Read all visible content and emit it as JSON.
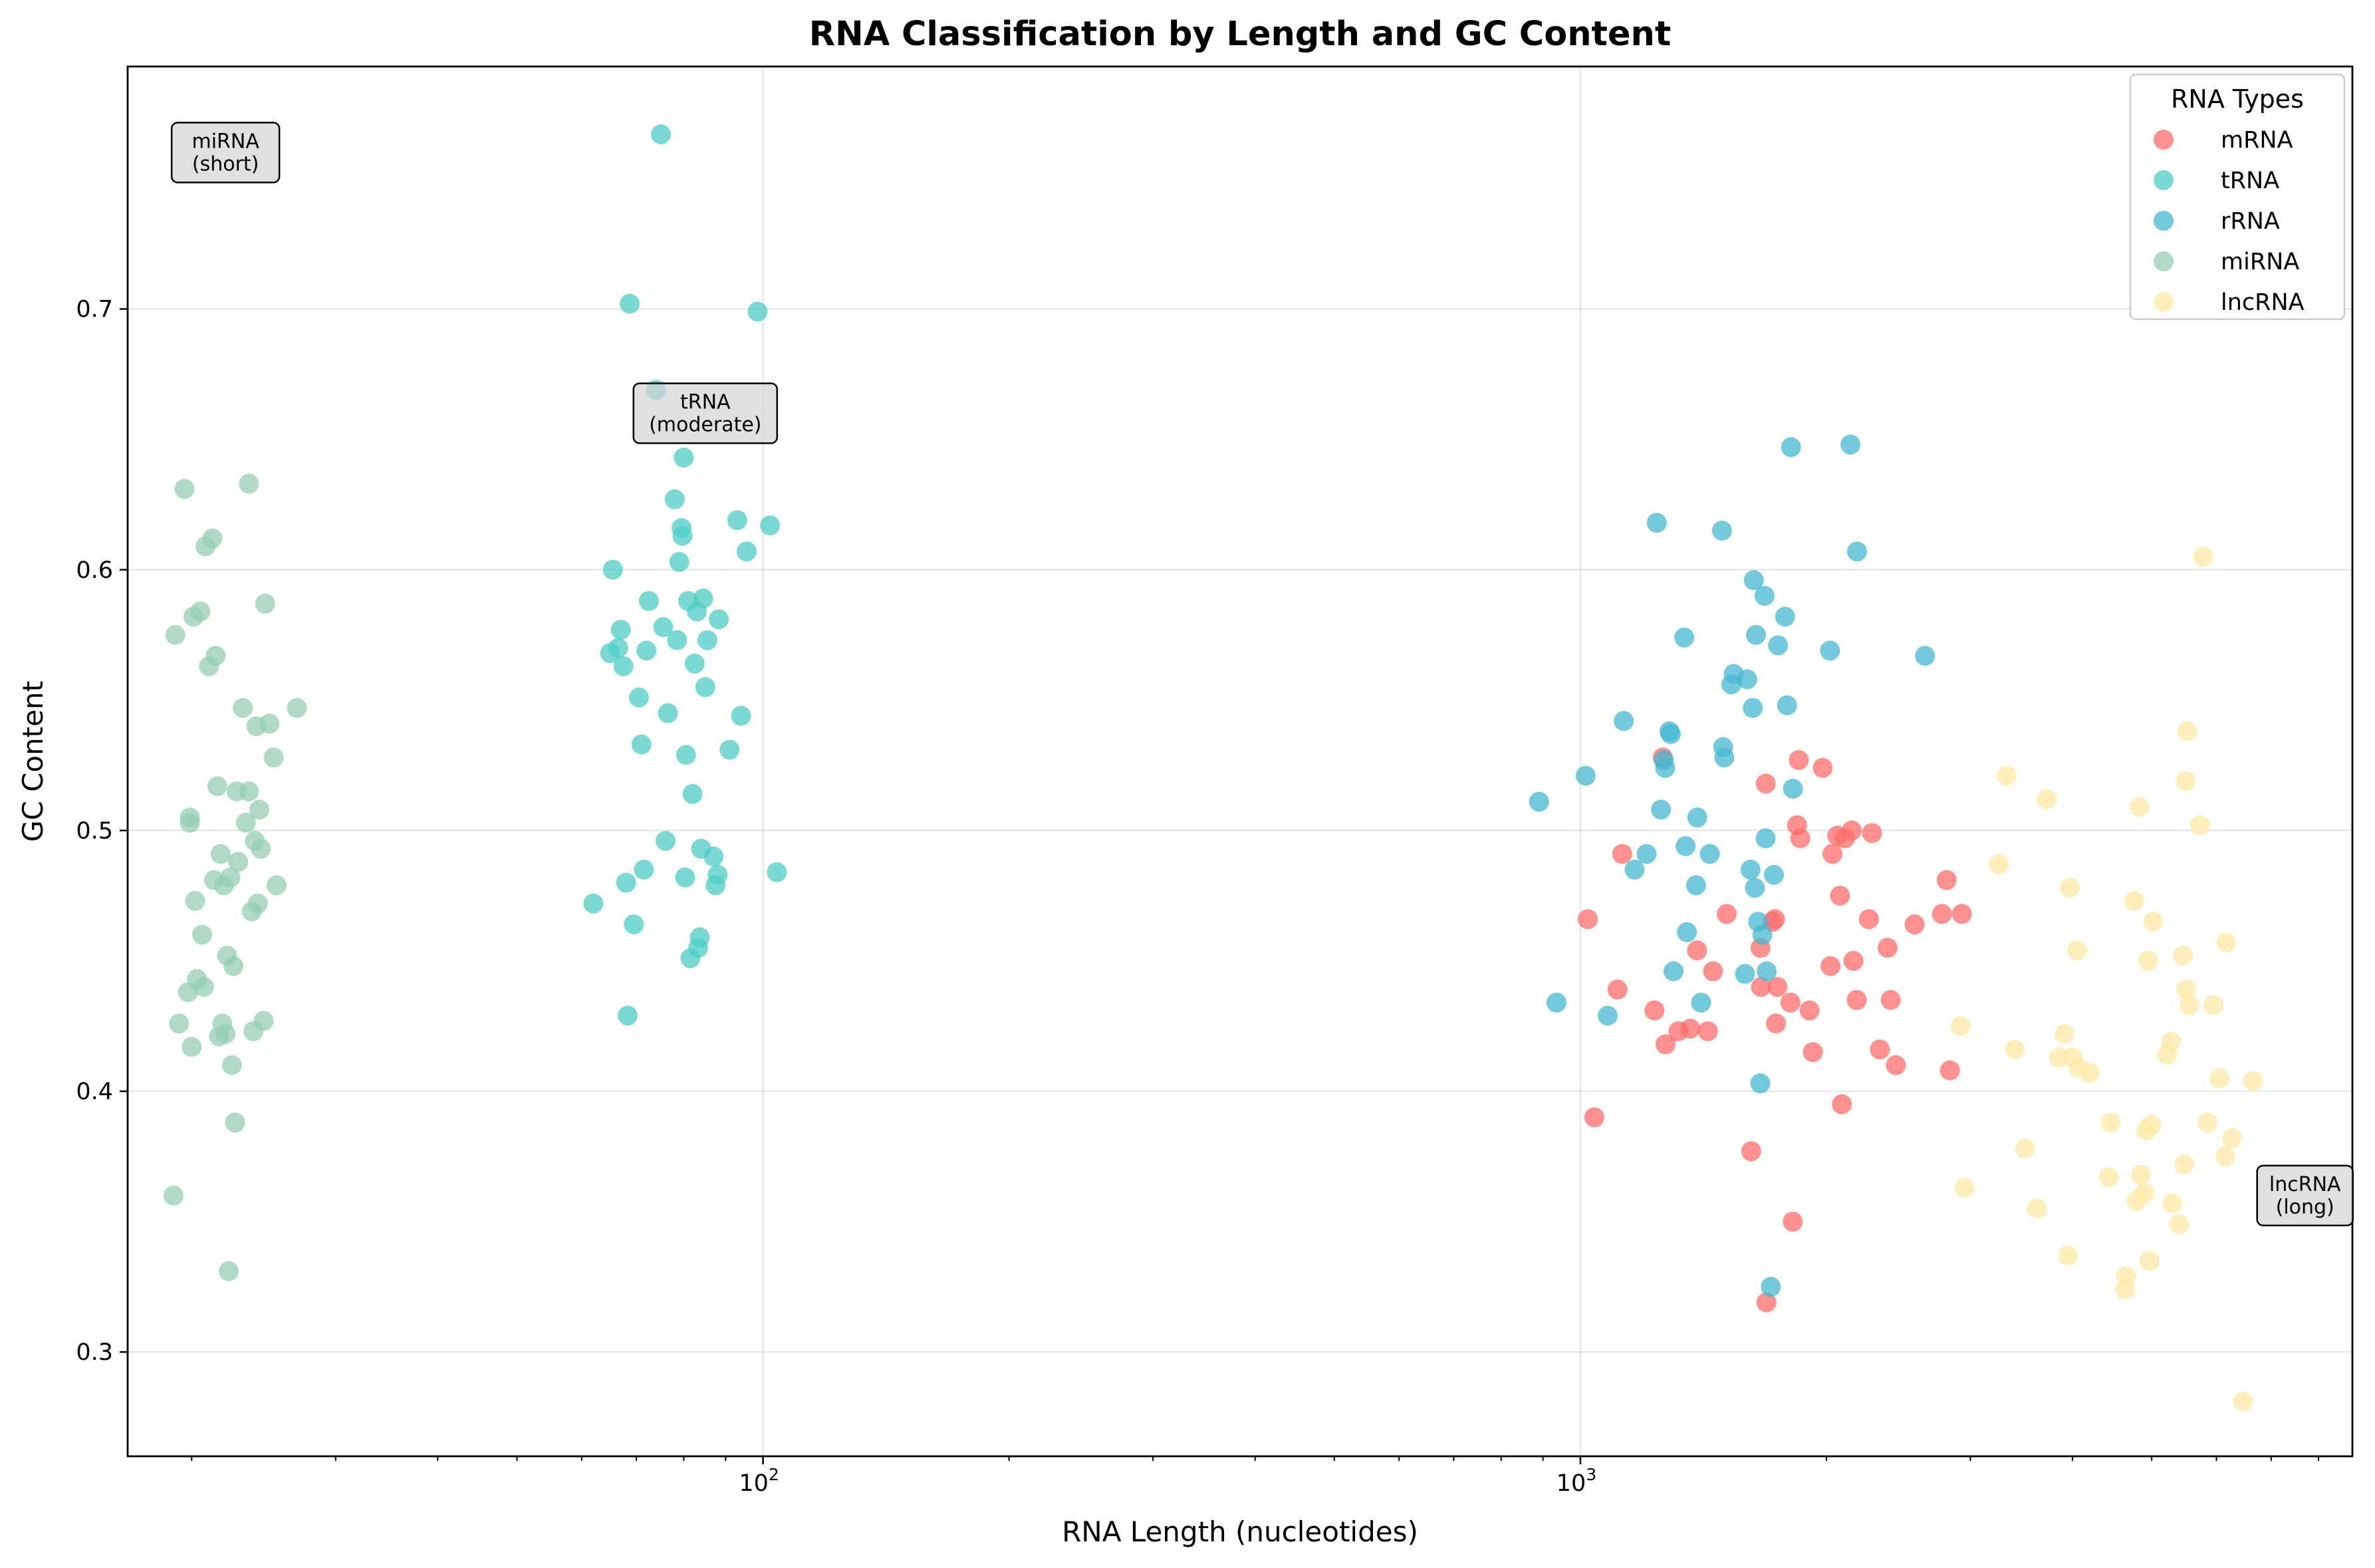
{
  "chart_data": {
    "type": "scatter",
    "title": "RNA Classification by Length and GC Content",
    "xlabel": "RNA Length (nucleotides)",
    "ylabel": "GC Content",
    "xscale": "log",
    "xlim": [
      16.7,
      8800
    ],
    "ylim": [
      0.26,
      0.793
    ],
    "x_ticks": [
      {
        "value": 100,
        "base": "10",
        "exp": "2"
      },
      {
        "value": 1000,
        "base": "10",
        "exp": "3"
      }
    ],
    "y_ticks": [
      {
        "value": 0.3,
        "label": "0.3"
      },
      {
        "value": 0.4,
        "label": "0.4"
      },
      {
        "value": 0.5,
        "label": "0.5"
      },
      {
        "value": 0.6,
        "label": "0.6"
      },
      {
        "value": 0.7,
        "label": "0.7"
      }
    ],
    "grid": true,
    "legend": {
      "title": "RNA Types",
      "position": "top-right"
    },
    "series": [
      {
        "name": "mRNA",
        "color": "#ff6b6b",
        "points": [
          [
            1021,
            0.466
          ],
          [
            1040,
            0.39
          ],
          [
            1110,
            0.439
          ],
          [
            1125,
            0.491
          ],
          [
            1232,
            0.431
          ],
          [
            1261,
            0.528
          ],
          [
            1271,
            0.418
          ],
          [
            1318,
            0.423
          ],
          [
            1363,
            0.424
          ],
          [
            1389,
            0.454
          ],
          [
            1432,
            0.423
          ],
          [
            1453,
            0.446
          ],
          [
            1510,
            0.468
          ],
          [
            1618,
            0.377
          ],
          [
            1661,
            0.455
          ],
          [
            1663,
            0.44
          ],
          [
            1686,
            0.518
          ],
          [
            1689,
            0.319
          ],
          [
            1718,
            0.465
          ],
          [
            1730,
            0.466
          ],
          [
            1735,
            0.426
          ],
          [
            1742,
            0.44
          ],
          [
            1807,
            0.434
          ],
          [
            1819,
            0.35
          ],
          [
            1841,
            0.502
          ],
          [
            1850,
            0.527
          ],
          [
            1858,
            0.497
          ],
          [
            1907,
            0.431
          ],
          [
            1925,
            0.415
          ],
          [
            1979,
            0.524
          ],
          [
            2023,
            0.448
          ],
          [
            2034,
            0.491
          ],
          [
            2062,
            0.498
          ],
          [
            2078,
            0.475
          ],
          [
            2089,
            0.395
          ],
          [
            2107,
            0.497
          ],
          [
            2148,
            0.5
          ],
          [
            2158,
            0.45
          ],
          [
            2178,
            0.435
          ],
          [
            2254,
            0.466
          ],
          [
            2274,
            0.499
          ],
          [
            2325,
            0.416
          ],
          [
            2376,
            0.455
          ],
          [
            2397,
            0.435
          ],
          [
            2432,
            0.41
          ],
          [
            2564,
            0.464
          ],
          [
            2769,
            0.468
          ],
          [
            2806,
            0.481
          ],
          [
            2832,
            0.408
          ],
          [
            2929,
            0.468
          ]
        ]
      },
      {
        "name": "tRNA",
        "color": "#4ecdc4",
        "points": [
          [
            62,
            0.472
          ],
          [
            65,
            0.568
          ],
          [
            65.5,
            0.6
          ],
          [
            66.5,
            0.57
          ],
          [
            67,
            0.577
          ],
          [
            67.5,
            0.563
          ],
          [
            68,
            0.48
          ],
          [
            68.3,
            0.429
          ],
          [
            68.7,
            0.702
          ],
          [
            69.5,
            0.464
          ],
          [
            70.5,
            0.551
          ],
          [
            71,
            0.533
          ],
          [
            71.5,
            0.485
          ],
          [
            72,
            0.569
          ],
          [
            72.5,
            0.588
          ],
          [
            74,
            0.669
          ],
          [
            75,
            0.767
          ],
          [
            75.5,
            0.578
          ],
          [
            76,
            0.496
          ],
          [
            76.5,
            0.545
          ],
          [
            78,
            0.627
          ],
          [
            78.5,
            0.573
          ],
          [
            79,
            0.603
          ],
          [
            79.5,
            0.616
          ],
          [
            79.7,
            0.613
          ],
          [
            80,
            0.643
          ],
          [
            80.3,
            0.482
          ],
          [
            80.5,
            0.529
          ],
          [
            81,
            0.588
          ],
          [
            81.5,
            0.451
          ],
          [
            82,
            0.514
          ],
          [
            82.5,
            0.564
          ],
          [
            83,
            0.584
          ],
          [
            83.3,
            0.455
          ],
          [
            83.7,
            0.459
          ],
          [
            84,
            0.493
          ],
          [
            84.5,
            0.589
          ],
          [
            85,
            0.555
          ],
          [
            85.5,
            0.573
          ],
          [
            87,
            0.49
          ],
          [
            87.5,
            0.479
          ],
          [
            88,
            0.483
          ],
          [
            88.3,
            0.581
          ],
          [
            91,
            0.531
          ],
          [
            93,
            0.619
          ],
          [
            94,
            0.544
          ],
          [
            95.5,
            0.607
          ],
          [
            98.5,
            0.699
          ],
          [
            102,
            0.617
          ],
          [
            104,
            0.484
          ]
        ]
      },
      {
        "name": "rRNA",
        "color": "#45b7d1",
        "points": [
          [
            890,
            0.511
          ],
          [
            935,
            0.434
          ],
          [
            1015,
            0.521
          ],
          [
            1080,
            0.429
          ],
          [
            1130,
            0.542
          ],
          [
            1165,
            0.485
          ],
          [
            1205,
            0.491
          ],
          [
            1240,
            0.618
          ],
          [
            1255,
            0.508
          ],
          [
            1265,
            0.527
          ],
          [
            1270,
            0.524
          ],
          [
            1285,
            0.538
          ],
          [
            1290,
            0.537
          ],
          [
            1300,
            0.446
          ],
          [
            1340,
            0.574
          ],
          [
            1345,
            0.494
          ],
          [
            1350,
            0.461
          ],
          [
            1385,
            0.479
          ],
          [
            1390,
            0.505
          ],
          [
            1405,
            0.434
          ],
          [
            1440,
            0.491
          ],
          [
            1490,
            0.615
          ],
          [
            1495,
            0.532
          ],
          [
            1500,
            0.528
          ],
          [
            1530,
            0.556
          ],
          [
            1540,
            0.56
          ],
          [
            1590,
            0.445
          ],
          [
            1600,
            0.558
          ],
          [
            1615,
            0.485
          ],
          [
            1625,
            0.547
          ],
          [
            1630,
            0.596
          ],
          [
            1635,
            0.478
          ],
          [
            1640,
            0.575
          ],
          [
            1650,
            0.465
          ],
          [
            1660,
            0.403
          ],
          [
            1670,
            0.46
          ],
          [
            1680,
            0.59
          ],
          [
            1685,
            0.497
          ],
          [
            1690,
            0.446
          ],
          [
            1710,
            0.325
          ],
          [
            1725,
            0.483
          ],
          [
            1745,
            0.571
          ],
          [
            1780,
            0.582
          ],
          [
            1790,
            0.548
          ],
          [
            1810,
            0.647
          ],
          [
            1820,
            0.516
          ],
          [
            2020,
            0.569
          ],
          [
            2140,
            0.648
          ],
          [
            2180,
            0.607
          ],
          [
            2640,
            0.567
          ]
        ]
      },
      {
        "name": "miRNA",
        "color": "#96ceb4",
        "points": [
          [
            19,
            0.36
          ],
          [
            19.1,
            0.575
          ],
          [
            19.3,
            0.426
          ],
          [
            19.6,
            0.631
          ],
          [
            19.8,
            0.438
          ],
          [
            19.9,
            0.503
          ],
          [
            19.9,
            0.505
          ],
          [
            20,
            0.417
          ],
          [
            20.1,
            0.582
          ],
          [
            20.2,
            0.473
          ],
          [
            20.3,
            0.443
          ],
          [
            20.5,
            0.584
          ],
          [
            20.6,
            0.46
          ],
          [
            20.7,
            0.44
          ],
          [
            20.8,
            0.609
          ],
          [
            21,
            0.563
          ],
          [
            21.2,
            0.612
          ],
          [
            21.3,
            0.481
          ],
          [
            21.4,
            0.567
          ],
          [
            21.5,
            0.517
          ],
          [
            21.6,
            0.421
          ],
          [
            21.7,
            0.491
          ],
          [
            21.8,
            0.426
          ],
          [
            21.9,
            0.479
          ],
          [
            22,
            0.422
          ],
          [
            22.1,
            0.452
          ],
          [
            22.2,
            0.331
          ],
          [
            22.3,
            0.482
          ],
          [
            22.4,
            0.41
          ],
          [
            22.5,
            0.448
          ],
          [
            22.6,
            0.388
          ],
          [
            22.7,
            0.515
          ],
          [
            22.8,
            0.488
          ],
          [
            23.1,
            0.547
          ],
          [
            23.3,
            0.503
          ],
          [
            23.5,
            0.515
          ],
          [
            23.5,
            0.633
          ],
          [
            23.7,
            0.469
          ],
          [
            23.8,
            0.423
          ],
          [
            23.9,
            0.496
          ],
          [
            24,
            0.54
          ],
          [
            24.1,
            0.472
          ],
          [
            24.2,
            0.508
          ],
          [
            24.3,
            0.493
          ],
          [
            24.5,
            0.427
          ],
          [
            24.6,
            0.587
          ],
          [
            24.9,
            0.541
          ],
          [
            25.2,
            0.528
          ],
          [
            25.4,
            0.479
          ],
          [
            26.9,
            0.547
          ]
        ]
      },
      {
        "name": "lncRNA",
        "color": "#ffeaa7",
        "points": [
          [
            2920,
            0.425
          ],
          [
            2950,
            0.363
          ],
          [
            3250,
            0.487
          ],
          [
            3320,
            0.521
          ],
          [
            3400,
            0.416
          ],
          [
            3500,
            0.378
          ],
          [
            3620,
            0.355
          ],
          [
            3720,
            0.512
          ],
          [
            3850,
            0.413
          ],
          [
            3910,
            0.422
          ],
          [
            3950,
            0.337
          ],
          [
            3970,
            0.478
          ],
          [
            4000,
            0.413
          ],
          [
            4050,
            0.454
          ],
          [
            4070,
            0.409
          ],
          [
            4200,
            0.407
          ],
          [
            4430,
            0.367
          ],
          [
            4450,
            0.388
          ],
          [
            4640,
            0.324
          ],
          [
            4650,
            0.329
          ],
          [
            4760,
            0.473
          ],
          [
            4790,
            0.358
          ],
          [
            4830,
            0.509
          ],
          [
            4850,
            0.368
          ],
          [
            4900,
            0.361
          ],
          [
            4920,
            0.385
          ],
          [
            4950,
            0.45
          ],
          [
            4970,
            0.335
          ],
          [
            4990,
            0.387
          ],
          [
            5020,
            0.465
          ],
          [
            5220,
            0.414
          ],
          [
            5280,
            0.419
          ],
          [
            5300,
            0.357
          ],
          [
            5400,
            0.349
          ],
          [
            5460,
            0.452
          ],
          [
            5480,
            0.372
          ],
          [
            5500,
            0.519
          ],
          [
            5510,
            0.439
          ],
          [
            5530,
            0.538
          ],
          [
            5560,
            0.433
          ],
          [
            5730,
            0.502
          ],
          [
            5780,
            0.605
          ],
          [
            5850,
            0.388
          ],
          [
            5950,
            0.433
          ],
          [
            6050,
            0.405
          ],
          [
            6150,
            0.375
          ],
          [
            6170,
            0.457
          ],
          [
            6270,
            0.382
          ],
          [
            6470,
            0.281
          ],
          [
            6650,
            0.404
          ]
        ]
      }
    ],
    "annotations": [
      {
        "lines": [
          "miRNA",
          "(short)"
        ],
        "x": 22,
        "y": 0.76
      },
      {
        "lines": [
          "tRNA",
          "(moderate)"
        ],
        "x": 85,
        "y": 0.66
      },
      {
        "lines": [
          "lncRNA",
          "(long)"
        ],
        "x": 7700,
        "y": 0.36
      }
    ]
  }
}
